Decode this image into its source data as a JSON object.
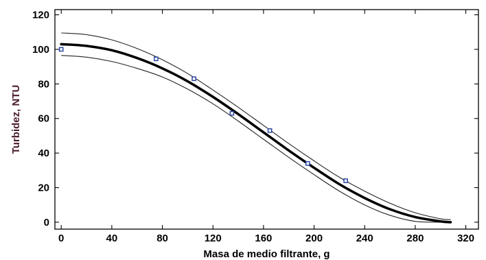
{
  "chart_data": {
    "type": "line",
    "title": "",
    "xlabel": "Masa de medio filtrante, g",
    "ylabel": "Turbidez, NTU",
    "xlim": [
      -5,
      330
    ],
    "ylim": [
      -4,
      123
    ],
    "xticks": [
      0,
      40,
      80,
      120,
      160,
      200,
      240,
      280,
      320
    ],
    "yticks": [
      0,
      20,
      40,
      60,
      80,
      100,
      120
    ],
    "grid": false,
    "legend": "none",
    "colors": {
      "fit": "#000000",
      "band": "#222222",
      "points": "#1f3fa0",
      "ylabel": "#4a1a2e",
      "xlabel": "#000000"
    },
    "series": [
      {
        "role": "fitted-curve",
        "x": [
          0,
          20,
          40,
          60,
          80,
          100,
          120,
          140,
          160,
          180,
          200,
          220,
          240,
          260,
          280,
          300,
          308
        ],
        "y": [
          103,
          102,
          99.5,
          95,
          89,
          81.5,
          72.5,
          62.5,
          52,
          41.5,
          31.5,
          22,
          14,
          7.5,
          3,
          0.5,
          0
        ]
      },
      {
        "role": "upper-confidence-band",
        "x": [
          0,
          20,
          40,
          60,
          80,
          100,
          120,
          140,
          160,
          180,
          200,
          220,
          240,
          260,
          280,
          300,
          308
        ],
        "y": [
          109.5,
          108.5,
          105.5,
          100.5,
          94,
          86,
          76.5,
          66.5,
          56,
          45.5,
          35.5,
          26,
          18,
          11,
          5.5,
          2,
          1.5
        ]
      },
      {
        "role": "lower-confidence-band",
        "x": [
          0,
          20,
          40,
          60,
          80,
          100,
          120,
          140,
          160,
          180,
          200,
          220,
          240,
          260,
          280,
          300,
          308
        ],
        "y": [
          96.5,
          95.5,
          93,
          89,
          84,
          77,
          68.5,
          58.5,
          48,
          37.5,
          27.5,
          18,
          10,
          4,
          0.5,
          0,
          0
        ]
      },
      {
        "role": "observed-points",
        "x": [
          0,
          75,
          105,
          135,
          165,
          195,
          225
        ],
        "y": [
          100,
          94.5,
          83,
          63,
          53,
          34,
          24
        ]
      }
    ]
  }
}
